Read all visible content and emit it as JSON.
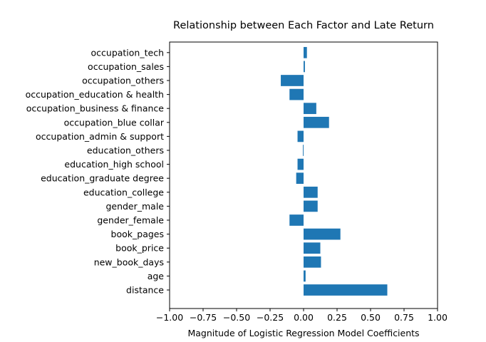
{
  "chart_data": {
    "type": "bar",
    "orientation": "horizontal",
    "title": "Relationship between Each Factor and Late Return",
    "xlabel": "Magnitude of Logistic Regression Model Coefficients",
    "ylabel": "",
    "xlim": [
      -1.0,
      1.0
    ],
    "xticks": [
      -1.0,
      -0.75,
      -0.5,
      -0.25,
      0.0,
      0.25,
      0.5,
      0.75,
      1.0
    ],
    "xtick_labels": [
      "−1.00",
      "−0.75",
      "−0.50",
      "−0.25",
      "0.00",
      "0.25",
      "0.50",
      "0.75",
      "1.00"
    ],
    "grid": false,
    "bar_color": "#1f77b4",
    "categories": [
      "distance",
      "age",
      "new_book_days",
      "book_price",
      "book_pages",
      "gender_female",
      "gender_male",
      "education_college",
      "education_graduate degree",
      "education_high school",
      "education_others",
      "occupation_admin & support",
      "occupation_blue collar",
      "occupation_business & finance",
      "occupation_education & health",
      "occupation_others",
      "occupation_sales",
      "occupation_tech"
    ],
    "values": [
      0.625,
      0.015,
      0.13,
      0.125,
      0.275,
      -0.105,
      0.105,
      0.105,
      -0.055,
      -0.045,
      -0.005,
      -0.045,
      0.19,
      0.095,
      -0.105,
      -0.17,
      0.01,
      0.025
    ]
  }
}
